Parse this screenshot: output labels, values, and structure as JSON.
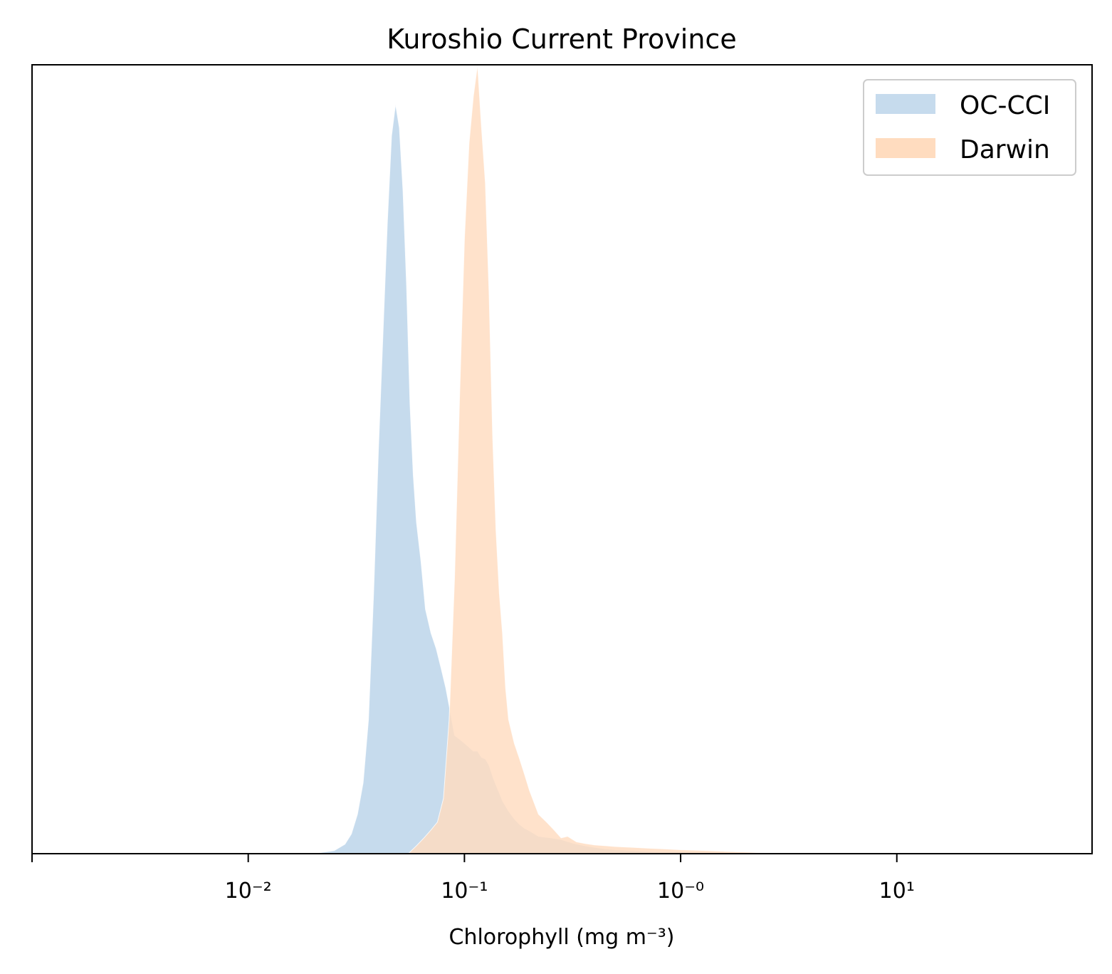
{
  "chart_data": {
    "type": "area",
    "title": "Kuroshio Current Province",
    "xlabel": "Chlorophyll (mg m⁻³)",
    "ylabel": "",
    "x_scale": "log",
    "xlim": [
      0.001,
      80
    ],
    "ylim": [
      0,
      1.0
    ],
    "x_ticks": [
      {
        "value": 0.001,
        "label": ""
      },
      {
        "value": 0.01,
        "label": "10⁻²"
      },
      {
        "value": 0.1,
        "label": "10⁻¹"
      },
      {
        "value": 1,
        "label": "10⁻⁰"
      },
      {
        "value": 10,
        "label": "10¹"
      }
    ],
    "y_ticks_visible": false,
    "grid": false,
    "legend_position": "top-right",
    "series": [
      {
        "name": "OC-CCI",
        "color": "#c6dbed",
        "x": [
          0.02,
          0.025,
          0.028,
          0.03,
          0.032,
          0.034,
          0.036,
          0.038,
          0.04,
          0.042,
          0.044,
          0.046,
          0.048,
          0.05,
          0.052,
          0.054,
          0.056,
          0.058,
          0.06,
          0.063,
          0.066,
          0.07,
          0.074,
          0.078,
          0.082,
          0.086,
          0.09,
          0.095,
          0.1,
          0.105,
          0.11,
          0.115,
          0.12,
          0.125,
          0.13,
          0.135,
          0.14,
          0.145,
          0.15,
          0.16,
          0.17,
          0.18,
          0.19,
          0.2,
          0.22,
          0.25,
          0.28,
          0.32,
          0.36,
          0.4,
          0.45,
          0.5,
          0.6,
          0.7,
          0.8,
          1.0,
          1.3,
          1.7,
          2.2
        ],
        "values": [
          0.0,
          0.004,
          0.012,
          0.025,
          0.05,
          0.09,
          0.17,
          0.33,
          0.51,
          0.66,
          0.8,
          0.91,
          0.95,
          0.92,
          0.84,
          0.72,
          0.57,
          0.48,
          0.42,
          0.37,
          0.31,
          0.28,
          0.26,
          0.235,
          0.21,
          0.18,
          0.15,
          0.145,
          0.14,
          0.135,
          0.13,
          0.13,
          0.122,
          0.12,
          0.112,
          0.098,
          0.087,
          0.077,
          0.067,
          0.054,
          0.044,
          0.037,
          0.032,
          0.029,
          0.022,
          0.02,
          0.018,
          0.013,
          0.01,
          0.008,
          0.006,
          0.005,
          0.004,
          0.003,
          0.002,
          0.002,
          0.001,
          0.001,
          0.0
        ]
      },
      {
        "name": "Darwin",
        "color": "#ffdcbf",
        "x": [
          0.055,
          0.06,
          0.065,
          0.07,
          0.075,
          0.08,
          0.085,
          0.09,
          0.095,
          0.1,
          0.105,
          0.11,
          0.115,
          0.12,
          0.125,
          0.13,
          0.135,
          0.14,
          0.145,
          0.15,
          0.155,
          0.16,
          0.17,
          0.18,
          0.19,
          0.2,
          0.22,
          0.24,
          0.26,
          0.28,
          0.3,
          0.33,
          0.36,
          0.4,
          0.45,
          0.5,
          0.6,
          0.7,
          0.85,
          1.0,
          1.3,
          1.6,
          2.0,
          2.4,
          3.0
        ],
        "values": [
          0.0,
          0.01,
          0.02,
          0.03,
          0.04,
          0.07,
          0.17,
          0.35,
          0.58,
          0.78,
          0.9,
          0.96,
          1.0,
          0.92,
          0.85,
          0.71,
          0.53,
          0.41,
          0.33,
          0.28,
          0.21,
          0.17,
          0.14,
          0.12,
          0.1,
          0.08,
          0.05,
          0.04,
          0.03,
          0.02,
          0.022,
          0.015,
          0.013,
          0.011,
          0.01,
          0.009,
          0.008,
          0.007,
          0.006,
          0.005,
          0.004,
          0.003,
          0.002,
          0.001,
          0.0
        ]
      }
    ]
  }
}
